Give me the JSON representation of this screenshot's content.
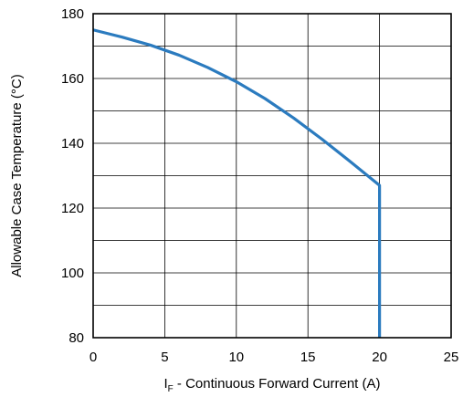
{
  "chart_data": {
    "type": "line",
    "title": "",
    "xlabel_main": "I",
    "xlabel_sub": "F",
    "xlabel_rest": " - Continuous Forward Current (A)",
    "ylabel": "Allowable Case Temperature (°C)",
    "xlim": [
      0,
      25
    ],
    "ylim": [
      80,
      180
    ],
    "xticks": [
      0,
      5,
      10,
      15,
      20,
      25
    ],
    "yticks": [
      80,
      100,
      120,
      140,
      160,
      180
    ],
    "x_gridlines": [
      0,
      5,
      10,
      15,
      20,
      25
    ],
    "y_gridlines": [
      80,
      90,
      100,
      110,
      120,
      130,
      140,
      150,
      160,
      170,
      180
    ],
    "grid": true,
    "series": [
      {
        "color": "#2b7bbf",
        "x": [
          0,
          2,
          4,
          6,
          8,
          10,
          12,
          14,
          16,
          18,
          20,
          20
        ],
        "y": [
          175,
          172.8,
          170.3,
          167.2,
          163.4,
          159,
          153.8,
          147.8,
          141.2,
          134.2,
          127,
          80
        ]
      }
    ]
  }
}
